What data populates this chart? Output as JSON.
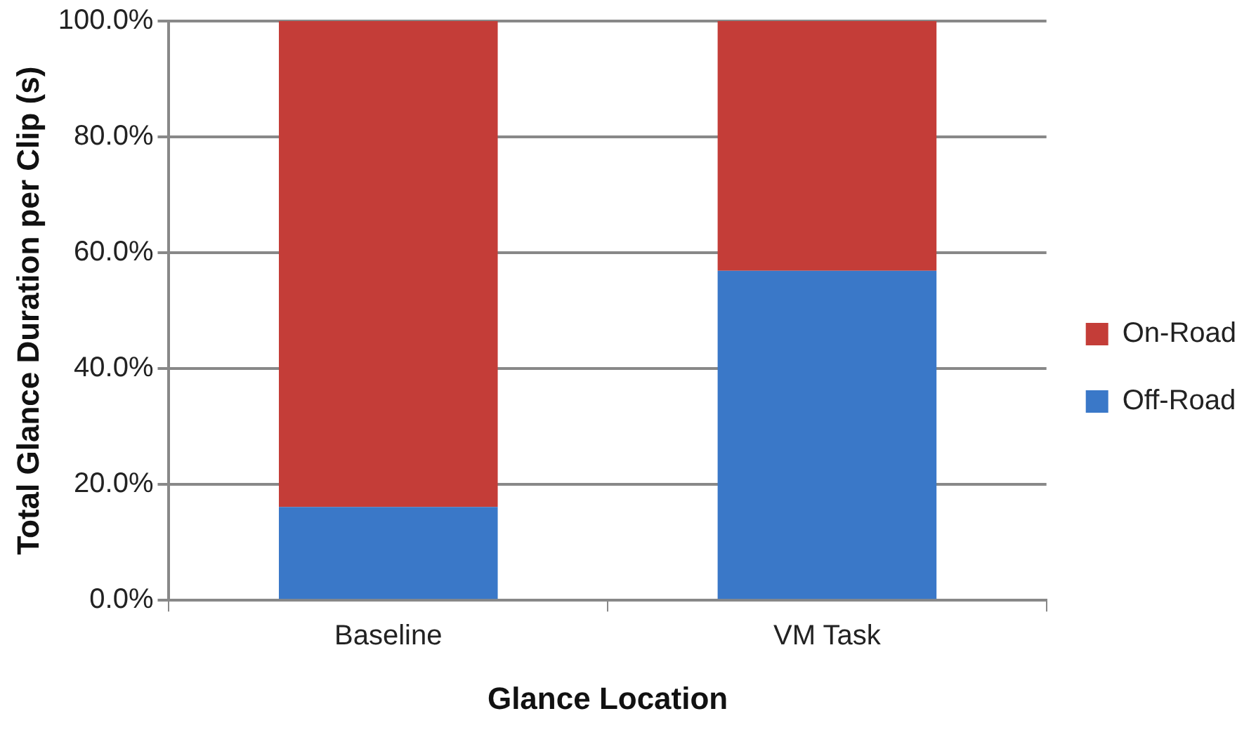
{
  "chart_data": {
    "type": "bar",
    "stacked": true,
    "xlabel": "Glance Location",
    "ylabel": "Total Glance Duration per Clip (s)",
    "categories": [
      "Baseline",
      "VM Task"
    ],
    "series": [
      {
        "name": "Off-Road",
        "color": "#3a78c8",
        "values": [
          16.1,
          56.9
        ]
      },
      {
        "name": "On-Road",
        "color": "#c43d38",
        "values": [
          83.9,
          43.1
        ]
      }
    ],
    "ylim": [
      0,
      100
    ],
    "yticks": [
      {
        "value": 0,
        "label": "0.0%"
      },
      {
        "value": 20,
        "label": "20.0%"
      },
      {
        "value": 40,
        "label": "40.0%"
      },
      {
        "value": 60,
        "label": "60.0%"
      },
      {
        "value": 80,
        "label": "80.0%"
      },
      {
        "value": 100,
        "label": "100.0%"
      }
    ],
    "grid": "y",
    "legend": "right"
  }
}
